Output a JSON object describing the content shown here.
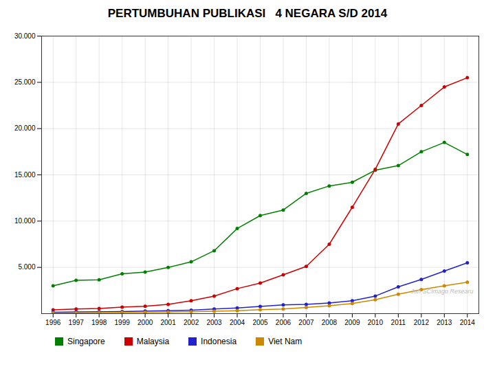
{
  "chart_data": {
    "type": "line",
    "title": "PERTUMBUHAN PUBLIKASI   4 NEGARA S/D 2014",
    "x": [
      1996,
      1997,
      1998,
      1999,
      2000,
      2001,
      2002,
      2003,
      2004,
      2005,
      2006,
      2007,
      2008,
      2009,
      2010,
      2011,
      2012,
      2013,
      2014
    ],
    "series": [
      {
        "name": "Singapore",
        "color": "#008000",
        "values": [
          3000,
          3600,
          3650,
          4300,
          4500,
          5000,
          5600,
          6800,
          9200,
          10600,
          11200,
          13000,
          13800,
          14200,
          15500,
          16000,
          17500,
          18500,
          17200
        ]
      },
      {
        "name": "Malaysia",
        "color": "#cc0000",
        "values": [
          400,
          500,
          550,
          700,
          800,
          1000,
          1400,
          1900,
          2700,
          3300,
          4200,
          5100,
          7500,
          11500,
          15600,
          20500,
          22500,
          24500,
          25500
        ]
      },
      {
        "name": "Indonesia",
        "color": "#2222cc",
        "values": [
          150,
          180,
          200,
          230,
          270,
          310,
          380,
          500,
          620,
          780,
          950,
          1000,
          1150,
          1400,
          1900,
          2900,
          3700,
          4600,
          5500
        ]
      },
      {
        "name": "Viet Nam",
        "color": "#cc8800",
        "values": [
          80,
          100,
          110,
          130,
          150,
          170,
          210,
          260,
          320,
          420,
          510,
          660,
          850,
          1100,
          1500,
          2100,
          2600,
          3000,
          3400
        ]
      }
    ],
    "xlim": [
      1995.5,
      2014.5
    ],
    "xticks": [
      1996,
      1997,
      1998,
      1999,
      2000,
      2001,
      2002,
      2003,
      2004,
      2005,
      2006,
      2007,
      2008,
      2009,
      2010,
      2011,
      2012,
      2013,
      2014
    ],
    "ylim": [
      0,
      30000
    ],
    "yticks": [
      {
        "value": 5000,
        "label": "5.000"
      },
      {
        "value": 10000,
        "label": "10.000"
      },
      {
        "value": 15000,
        "label": "15.000"
      },
      {
        "value": 20000,
        "label": "20.000"
      },
      {
        "value": 25000,
        "label": "25.000"
      },
      {
        "value": 30000,
        "label": "30.000"
      }
    ],
    "grid": true,
    "marker": "circle",
    "legend": "bottom",
    "annotations": [
      "Jari SCImago Researu"
    ]
  }
}
